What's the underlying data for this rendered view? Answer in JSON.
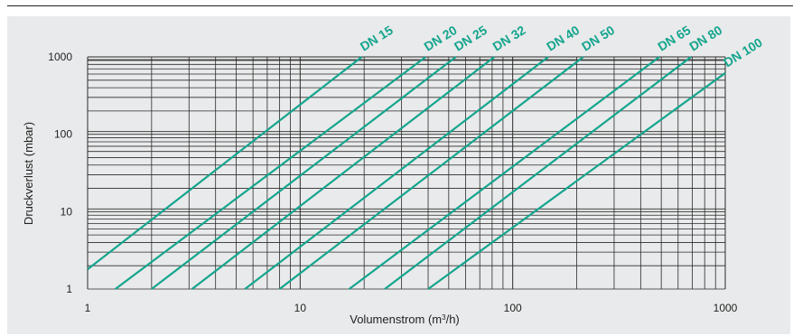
{
  "chart_data": {
    "type": "line",
    "x_scale": "log",
    "y_scale": "log",
    "xlim": [
      1,
      1000
    ],
    "ylim": [
      1,
      1000
    ],
    "xlabel_prefix": "Volumenstrom (m",
    "xlabel_sup": "3",
    "xlabel_suffix": "/h)",
    "ylabel": "Druckverlust (mbar)",
    "x_ticks": [
      "1",
      "10",
      "100",
      "1000"
    ],
    "y_ticks": [
      "1",
      "10",
      "100",
      "1000"
    ],
    "grid": true,
    "line_color": "#14a58e",
    "series": [
      {
        "name": "DN 15",
        "points": [
          [
            1,
            1.8
          ],
          [
            19.5,
            1000
          ]
        ]
      },
      {
        "name": "DN 20",
        "points": [
          [
            1.35,
            1
          ],
          [
            39,
            1000
          ]
        ]
      },
      {
        "name": "DN 25",
        "points": [
          [
            2,
            1
          ],
          [
            54,
            1000
          ]
        ]
      },
      {
        "name": "DN 32",
        "points": [
          [
            3.1,
            1
          ],
          [
            82,
            1000
          ]
        ]
      },
      {
        "name": "DN 40",
        "points": [
          [
            5.5,
            1
          ],
          [
            147,
            1000
          ]
        ]
      },
      {
        "name": "DN 50",
        "points": [
          [
            8,
            1
          ],
          [
            215,
            1000
          ]
        ]
      },
      {
        "name": "DN 65",
        "points": [
          [
            17,
            1
          ],
          [
            490,
            1000
          ]
        ]
      },
      {
        "name": "DN 80",
        "points": [
          [
            25,
            1
          ],
          [
            690,
            1000
          ]
        ]
      },
      {
        "name": "DN 100",
        "points": [
          [
            40,
            1
          ],
          [
            1000,
            620
          ]
        ]
      }
    ]
  }
}
